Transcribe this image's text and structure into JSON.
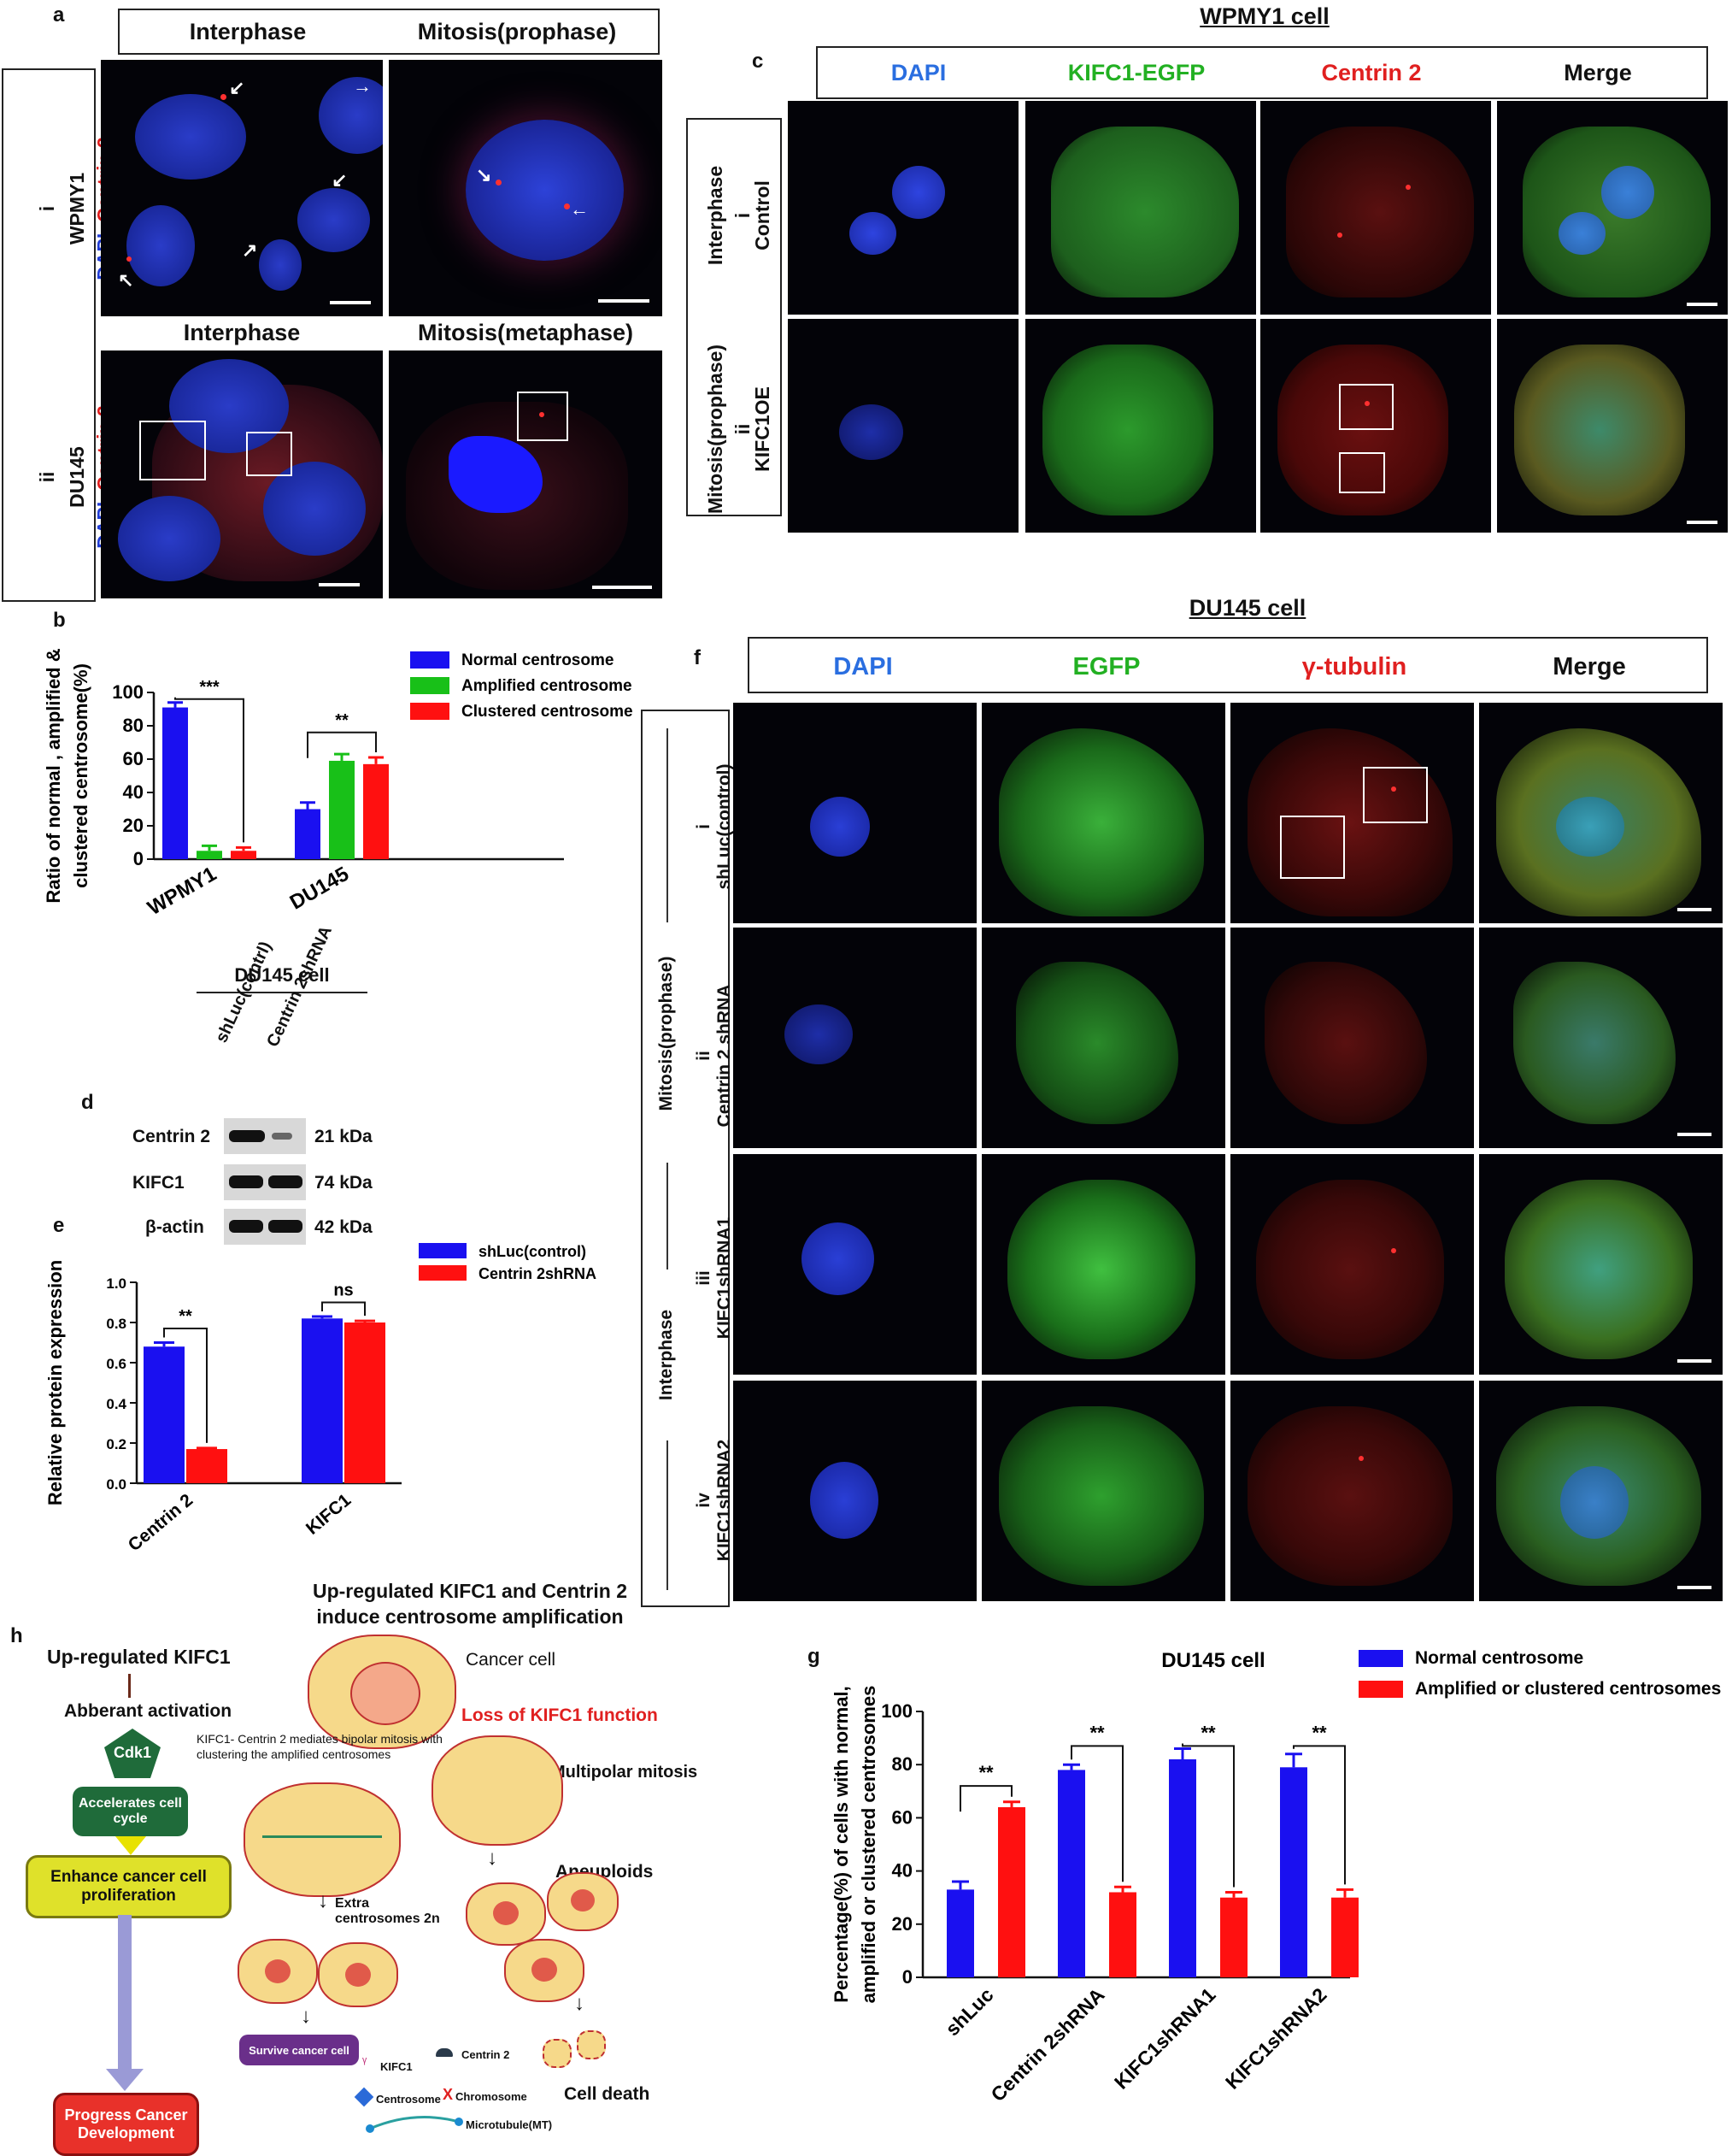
{
  "panels": {
    "a": "a",
    "b": "b",
    "c": "c",
    "d": "d",
    "e": "e",
    "f": "f",
    "g": "g",
    "h": "h"
  },
  "panel_a": {
    "col_interphase": "Interphase",
    "col_mitosis_prophase": "Mitosis(prophase)",
    "row_i_num": "i",
    "row_i_name": "WPMY1",
    "row_ii_num": "ii",
    "row_ii_name": "DU145",
    "stain_dapi": "DAPI",
    "stain_comma": " ,",
    "stain_centrin": "Centrin 2",
    "sub_interphase": "Interphase",
    "sub_mitosis_metaphase": "Mitosis(metaphase)"
  },
  "panel_c": {
    "title": "WPMY1 cell",
    "cols": [
      "DAPI",
      "KIFC1-EGFP",
      "Centrin 2",
      "Merge"
    ],
    "col_colors": [
      "#2a6ee0",
      "#22b022",
      "#e02020",
      "#111111"
    ],
    "row_i_phase": "Interphase",
    "row_i_num": "i",
    "row_i_name": "Control",
    "row_ii_phase": "Mitosis(prophase)",
    "row_ii_num": "ii",
    "row_ii_name": "KIFC1OE"
  },
  "panel_f": {
    "title": "DU145 cell",
    "cols": [
      "DAPI",
      "EGFP",
      "γ-tubulin",
      "Merge"
    ],
    "col_colors": [
      "#2a6ee0",
      "#22b022",
      "#e02020",
      "#111111"
    ],
    "group_mitosis": "Mitosis(prophase)",
    "group_interphase": "Interphase",
    "rows": [
      {
        "num": "i",
        "name": "shLuc(control)"
      },
      {
        "num": "ii",
        "name": "Centrin 2 shRNA"
      },
      {
        "num": "iii",
        "name": "KIFC1shRNA1"
      },
      {
        "num": "iv",
        "name": "KIFC1shRNA2"
      }
    ]
  },
  "panel_d": {
    "title": "DU145 cell",
    "lanes": [
      "shLuc(contrl)",
      "Centrin 2shRNA"
    ],
    "proteins": [
      {
        "name": "Centrin  2",
        "kda": "21 kDa"
      },
      {
        "name": "KIFC1",
        "kda": "74 kDa"
      },
      {
        "name": "β-actin",
        "kda": "42 kDa"
      }
    ]
  },
  "colors": {
    "blue": "#1a10f0",
    "green": "#18c018",
    "red": "#ff1010"
  },
  "chart_data": [
    {
      "id": "b",
      "type": "bar",
      "ylabel": "Ratio of normal , amplified & clustered centrosome(%)",
      "categories": [
        "WPMY1",
        "DU145"
      ],
      "series": [
        {
          "name": "Normal centrosome",
          "color": "#1a10f0",
          "values": [
            91,
            30
          ],
          "errors": [
            3,
            4
          ]
        },
        {
          "name": "Amplified centrosome",
          "color": "#18c018",
          "values": [
            5,
            59
          ],
          "errors": [
            3,
            4
          ]
        },
        {
          "name": "Clustered centrosome",
          "color": "#ff1010",
          "values": [
            5,
            57
          ],
          "errors": [
            2,
            4
          ]
        }
      ],
      "ylim": [
        0,
        100
      ],
      "yticks": [
        0,
        20,
        40,
        60,
        80,
        100
      ],
      "annotations": [
        "***",
        "**"
      ]
    },
    {
      "id": "e",
      "type": "bar",
      "ylabel": "Relative protein expression",
      "categories": [
        "Centrin 2",
        "KIFC1"
      ],
      "series": [
        {
          "name": "shLuc(control)",
          "color": "#1a10f0",
          "values": [
            0.68,
            0.82
          ],
          "errors": [
            0.02,
            0.01
          ]
        },
        {
          "name": "Centrin 2shRNA",
          "color": "#ff1010",
          "values": [
            0.17,
            0.8
          ],
          "errors": [
            0.005,
            0.008
          ]
        }
      ],
      "ylim": [
        0,
        1.0
      ],
      "yticks": [
        "0.0",
        "0.2",
        "0.4",
        "0.6",
        "0.8",
        "1.0"
      ],
      "annotations": [
        "**",
        "ns"
      ]
    },
    {
      "id": "g",
      "type": "bar",
      "title": "DU145 cell",
      "ylabel": "Percentage(%) of cells with  normal, amplified or clustered centrosomes",
      "categories": [
        "shLuc",
        "Centrin 2shRNA",
        "KIFC1shRNA1",
        "KIFC1shRNA2"
      ],
      "series": [
        {
          "name": "Normal centrosome",
          "color": "#1a10f0",
          "values": [
            33,
            78,
            82,
            79
          ],
          "errors": [
            3,
            2,
            4,
            5
          ]
        },
        {
          "name": "Amplified or clustered centrosomes",
          "color": "#ff1010",
          "values": [
            64,
            32,
            30,
            30
          ],
          "errors": [
            2,
            2,
            2,
            3
          ]
        }
      ],
      "ylim": [
        0,
        100
      ],
      "yticks": [
        0,
        20,
        40,
        60,
        80,
        100
      ],
      "annotations": [
        "**",
        "**",
        "**",
        "**"
      ]
    }
  ],
  "panel_h": {
    "title_line1": "Up-regulated KIFC1 and Centrin 2",
    "title_line2": "induce centrosome amplification",
    "up_kifc1": "Up-regulated KIFC1",
    "aberrant": "Abberant activation",
    "cdk1": "Cdk1",
    "accel": "Accelerates cell cycle",
    "enhance": "Enhance cancer cell proliferation",
    "progress": "Progress Cancer Development",
    "cancer_cell": "Cancer cell",
    "loss": "Loss of KIFC1 function",
    "bipolar": "KIFC1- Centrin 2 mediates bipolar mitosis with clustering the amplified centrosomes",
    "multipolar": "Multipolar mitosis",
    "aneuploids": "Aneuploids",
    "extra": "Extra centrosomes 2n",
    "survive": "Survive cancer cell",
    "cell_death": "Cell death",
    "legend_kifc1": "KIFC1",
    "legend_centrin": "Centrin 2",
    "legend_centrosome": "Centrosome",
    "legend_chromosome": "Chromosome",
    "legend_mt": "Microtubule(MT)"
  }
}
